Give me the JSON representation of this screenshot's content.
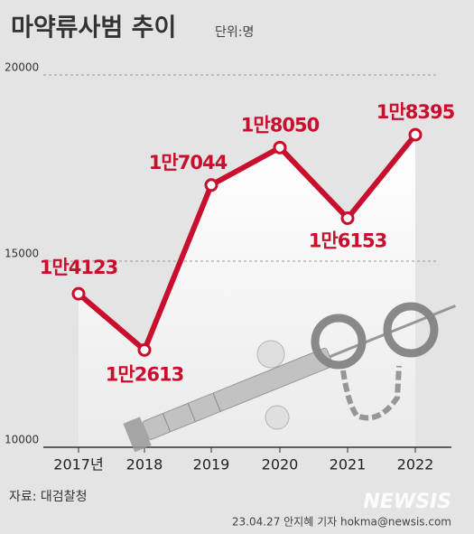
{
  "chart_data": {
    "type": "line",
    "title": "마약류사범 추이",
    "unit": "단위:명",
    "categories": [
      "2017년",
      "2018",
      "2019",
      "2020",
      "2021",
      "2022"
    ],
    "values": [
      14123,
      12613,
      17044,
      18050,
      16153,
      18395
    ],
    "value_labels": [
      "1만4123",
      "1만2613",
      "1만7044",
      "1만8050",
      "1만6153",
      "1만8395"
    ],
    "color": "#c8102e",
    "ylim": [
      10000,
      20000
    ],
    "yticks": [
      10000,
      15000,
      20000
    ],
    "grid": true
  },
  "source": "자료: 대검찰청",
  "logo": "NEWSIS",
  "credit": "23.04.27 안지혜 기자 hokma@newsis.com"
}
